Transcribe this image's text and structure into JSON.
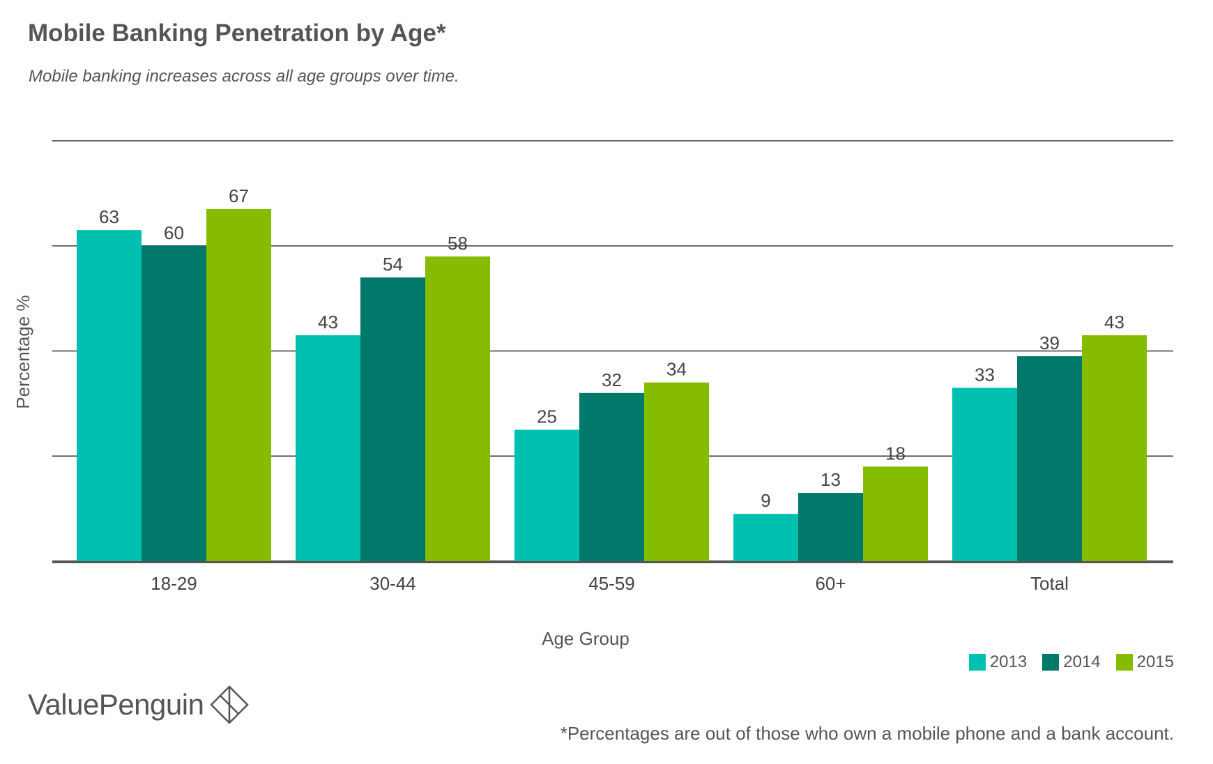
{
  "header": {
    "title": "Mobile Banking Penetration by Age*",
    "subtitle": "Mobile banking increases across all age groups over time."
  },
  "colors": {
    "2013": "#00c1b0",
    "2014": "#00786a",
    "2015": "#85bc00",
    "grid": "#333333",
    "text": "#555555"
  },
  "chart_data": {
    "type": "bar",
    "title": "Mobile Banking Penetration by Age*",
    "subtitle": "Mobile banking increases across all age groups over time.",
    "xlabel": "Age Group",
    "ylabel": "Percentage %",
    "categories": [
      "18-29",
      "30-44",
      "45-59",
      "60+",
      "Total"
    ],
    "series": [
      {
        "name": "2013",
        "color": "#00c1b0",
        "values": [
          63,
          43,
          25,
          9,
          33
        ]
      },
      {
        "name": "2014",
        "color": "#00786a",
        "values": [
          60,
          54,
          32,
          13,
          39
        ]
      },
      {
        "name": "2015",
        "color": "#85bc00",
        "values": [
          67,
          58,
          34,
          18,
          43
        ]
      }
    ],
    "ylim": [
      0,
      80
    ],
    "gridlines": [
      20,
      40,
      60,
      80
    ],
    "grid": true,
    "legend_position": "bottom-right",
    "data_labels": true
  },
  "legend": {
    "items": [
      {
        "label": "2013",
        "color": "#00c1b0"
      },
      {
        "label": "2014",
        "color": "#00786a"
      },
      {
        "label": "2015",
        "color": "#85bc00"
      }
    ]
  },
  "footer": {
    "brand": "ValuePenguin",
    "brand_icon": "valuepenguin-logo-icon",
    "note": "*Percentages are out of those who own a mobile phone and a bank account."
  }
}
